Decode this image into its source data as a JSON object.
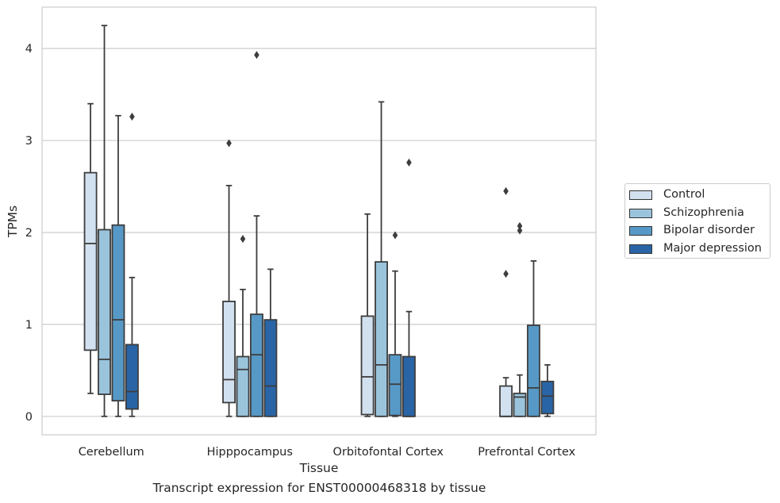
{
  "caption": "Transcript expression for ENST00000468318 by tissue",
  "chart_data": {
    "type": "boxplot",
    "xlabel": "Tissue",
    "ylabel": "TPMs",
    "ylim": [
      -0.2,
      4.45
    ],
    "yticks": [
      0,
      1,
      2,
      3,
      4
    ],
    "grid": "horizontal",
    "legend_position": "right",
    "categories": [
      "Cerebellum",
      "Hipppocampus",
      "Orbitofontal Cortex",
      "Prefrontal Cortex"
    ],
    "series": [
      {
        "name": "Control",
        "color": "#d2e1f0",
        "boxes": [
          {
            "whisker_low": 0.25,
            "q1": 0.72,
            "median": 1.88,
            "q3": 2.65,
            "whisker_high": 3.4,
            "outliers": []
          },
          {
            "whisker_low": 0.0,
            "q1": 0.15,
            "median": 0.4,
            "q3": 1.25,
            "whisker_high": 2.51,
            "outliers": [
              2.97
            ]
          },
          {
            "whisker_low": 0.0,
            "q1": 0.02,
            "median": 0.43,
            "q3": 1.09,
            "whisker_high": 2.2,
            "outliers": []
          },
          {
            "whisker_low": 0.0,
            "q1": 0.0,
            "median": 0.0,
            "q3": 0.33,
            "whisker_high": 0.42,
            "outliers": [
              1.55,
              2.45
            ]
          }
        ]
      },
      {
        "name": "Schizophrenia",
        "color": "#9ac4dc",
        "boxes": [
          {
            "whisker_low": 0.0,
            "q1": 0.24,
            "median": 0.62,
            "q3": 2.03,
            "whisker_high": 4.25,
            "outliers": []
          },
          {
            "whisker_low": 0.0,
            "q1": 0.0,
            "median": 0.51,
            "q3": 0.65,
            "whisker_high": 1.38,
            "outliers": [
              1.93
            ]
          },
          {
            "whisker_low": 0.0,
            "q1": 0.0,
            "median": 0.56,
            "q3": 1.68,
            "whisker_high": 3.42,
            "outliers": []
          },
          {
            "whisker_low": 0.0,
            "q1": 0.0,
            "median": 0.21,
            "q3": 0.25,
            "whisker_high": 0.45,
            "outliers": [
              2.02,
              2.07
            ]
          }
        ]
      },
      {
        "name": "Bipolar disorder",
        "color": "#5799c6",
        "boxes": [
          {
            "whisker_low": 0.0,
            "q1": 0.17,
            "median": 1.05,
            "q3": 2.08,
            "whisker_high": 3.27,
            "outliers": []
          },
          {
            "whisker_low": 0.0,
            "q1": 0.0,
            "median": 0.67,
            "q3": 1.11,
            "whisker_high": 2.18,
            "outliers": [
              3.93
            ]
          },
          {
            "whisker_low": 0.0,
            "q1": 0.01,
            "median": 0.35,
            "q3": 0.67,
            "whisker_high": 1.58,
            "outliers": [
              1.97
            ]
          },
          {
            "whisker_low": 0.0,
            "q1": 0.0,
            "median": 0.31,
            "q3": 0.99,
            "whisker_high": 1.69,
            "outliers": []
          }
        ]
      },
      {
        "name": "Major depression",
        "color": "#2965a6",
        "boxes": [
          {
            "whisker_low": 0.0,
            "q1": 0.08,
            "median": 0.27,
            "q3": 0.78,
            "whisker_high": 1.51,
            "outliers": [
              3.26
            ]
          },
          {
            "whisker_low": 0.0,
            "q1": 0.0,
            "median": 0.33,
            "q3": 1.05,
            "whisker_high": 1.6,
            "outliers": []
          },
          {
            "whisker_low": 0.0,
            "q1": 0.0,
            "median": 0.0,
            "q3": 0.65,
            "whisker_high": 1.14,
            "outliers": [
              2.76
            ]
          },
          {
            "whisker_low": 0.0,
            "q1": 0.03,
            "median": 0.22,
            "q3": 0.38,
            "whisker_high": 0.56,
            "outliers": []
          }
        ]
      }
    ]
  }
}
